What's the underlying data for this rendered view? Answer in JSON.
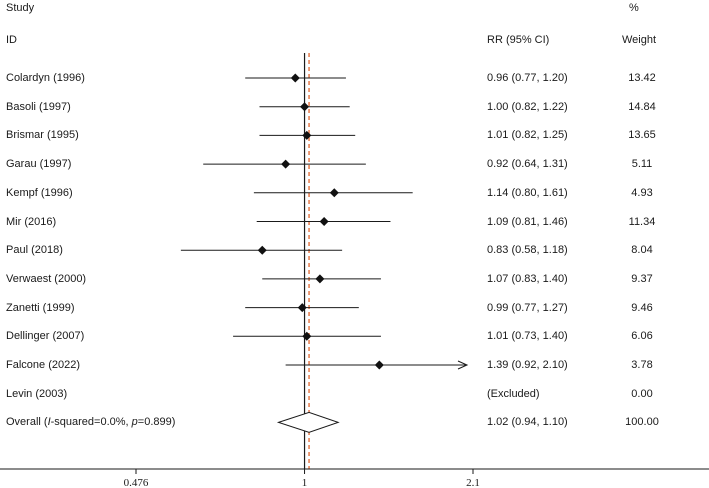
{
  "header": {
    "study": "Study",
    "id": "ID",
    "rr": "RR (95% CI)",
    "pct": "%",
    "weight": "Weight"
  },
  "chart_data": {
    "type": "forest",
    "xscale": "log",
    "x_ticks": [
      {
        "value": 0.476,
        "label": "0.476"
      },
      {
        "value": 1,
        "label": "1"
      },
      {
        "value": 2.1,
        "label": "2.1"
      }
    ],
    "null_line": 1,
    "pooled_line": 1.02,
    "pooled_line_color": "#e05a1e",
    "studies": [
      {
        "name": "Colardyn (1996)",
        "rr": 0.96,
        "lo": 0.77,
        "hi": 1.2,
        "ci_text": "0.96 (0.77, 1.20)",
        "weight": "13.42"
      },
      {
        "name": "Basoli (1997)",
        "rr": 1.0,
        "lo": 0.82,
        "hi": 1.22,
        "ci_text": "1.00 (0.82, 1.22)",
        "weight": "14.84"
      },
      {
        "name": "Brismar (1995)",
        "rr": 1.01,
        "lo": 0.82,
        "hi": 1.25,
        "ci_text": "1.01 (0.82, 1.25)",
        "weight": "13.65"
      },
      {
        "name": "Garau (1997)",
        "rr": 0.92,
        "lo": 0.64,
        "hi": 1.31,
        "ci_text": "0.92 (0.64, 1.31)",
        "weight": "5.11"
      },
      {
        "name": "Kempf (1996)",
        "rr": 1.14,
        "lo": 0.8,
        "hi": 1.61,
        "ci_text": "1.14 (0.80, 1.61)",
        "weight": "4.93"
      },
      {
        "name": "Mir (2016)",
        "rr": 1.09,
        "lo": 0.81,
        "hi": 1.46,
        "ci_text": "1.09 (0.81, 1.46)",
        "weight": "11.34"
      },
      {
        "name": "Paul (2018)",
        "rr": 0.83,
        "lo": 0.58,
        "hi": 1.18,
        "ci_text": "0.83 (0.58, 1.18)",
        "weight": "8.04"
      },
      {
        "name": "Verwaest (2000)",
        "rr": 1.07,
        "lo": 0.83,
        "hi": 1.4,
        "ci_text": "1.07 (0.83, 1.40)",
        "weight": "9.37"
      },
      {
        "name": "Zanetti (1999)",
        "rr": 0.99,
        "lo": 0.77,
        "hi": 1.27,
        "ci_text": "0.99 (0.77, 1.27)",
        "weight": "9.46"
      },
      {
        "name": "Dellinger (2007)",
        "rr": 1.01,
        "lo": 0.73,
        "hi": 1.4,
        "ci_text": "1.01 (0.73, 1.40)",
        "weight": "6.06"
      },
      {
        "name": "Falcone (2022)",
        "rr": 1.39,
        "lo": 0.92,
        "hi": 2.1,
        "ci_text": "1.39 (0.92, 2.10)",
        "weight": "3.78",
        "arrow_right": true
      },
      {
        "name": "Levin (2003)",
        "rr": null,
        "lo": null,
        "hi": null,
        "ci_text": "(Excluded)",
        "weight": "0.00"
      }
    ],
    "overall": {
      "name_prefix": "Overall (",
      "name_i": "I",
      "name_mid": "-squared=0.0%, ",
      "name_p": "p",
      "name_suffix": "=0.899)",
      "rr": 1.02,
      "lo": 0.94,
      "hi": 1.1,
      "ci_text": "1.02 (0.94, 1.10)",
      "weight": "100.00"
    }
  }
}
